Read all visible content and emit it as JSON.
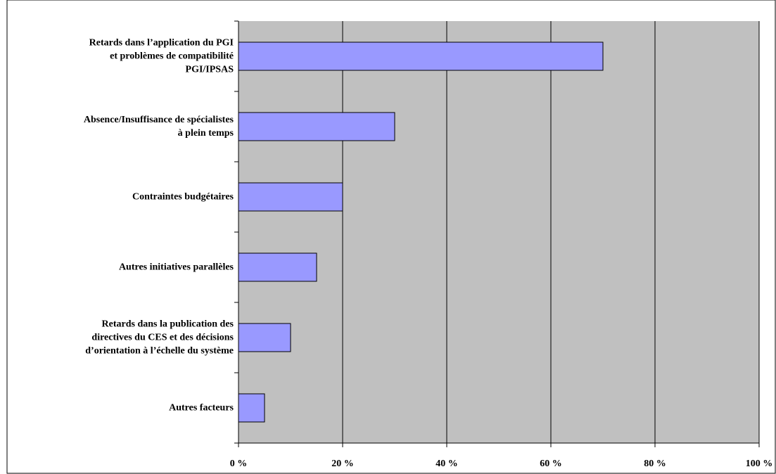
{
  "chart_data": {
    "type": "bar",
    "orientation": "horizontal",
    "categories": [
      "Retards dans l’application du PGI\net problèmes de compatibilité\nPGI/IPSAS",
      "Absence/Insuffisance de spécialistes\nà plein temps",
      "Contraintes budgétaires",
      "Autres initiatives parallèles",
      "Retards dans la publication des\ndirectives du CES et des décisions\nd’orientation à l’échelle du système",
      "Autres facteurs"
    ],
    "values": [
      70,
      30,
      20,
      15,
      10,
      5
    ],
    "color": "#9999ff",
    "xlim": [
      0,
      100
    ],
    "xticks": [
      {
        "value": 0,
        "label": "0 %"
      },
      {
        "value": 20,
        "label": "20 %"
      },
      {
        "value": 40,
        "label": "40 %"
      },
      {
        "value": 60,
        "label": "60 %"
      },
      {
        "value": 80,
        "label": "80 %"
      },
      {
        "value": 100,
        "label": "100 %"
      }
    ],
    "grid": true
  }
}
